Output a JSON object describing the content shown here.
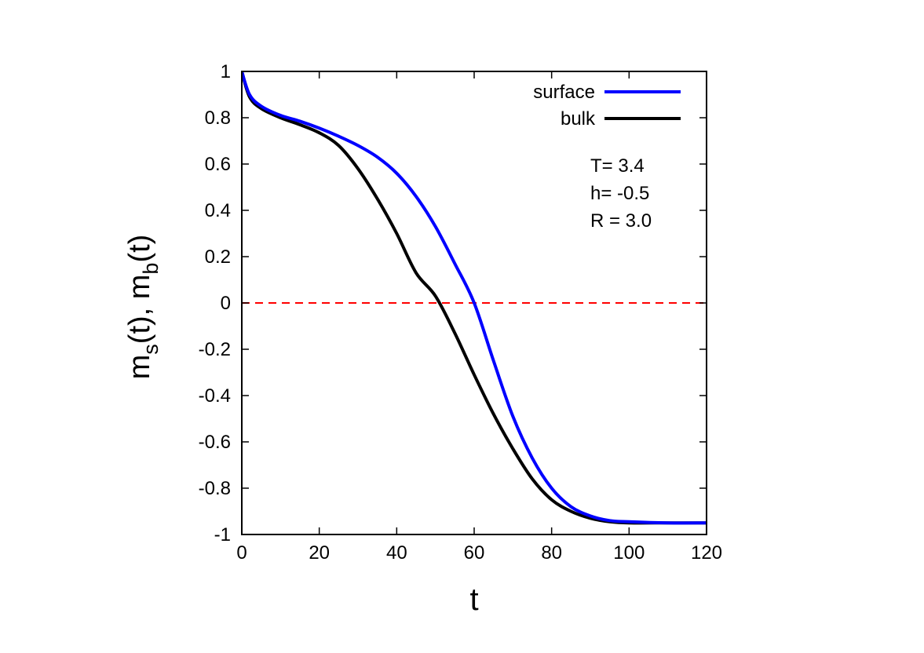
{
  "chart_data": {
    "type": "line",
    "xlabel": "t",
    "ylabel": {
      "parts": [
        {
          "text": "m",
          "sub": false
        },
        {
          "text": "s",
          "sub": true
        },
        {
          "text": "(t), m",
          "sub": false
        },
        {
          "text": "b",
          "sub": true
        },
        {
          "text": "(t)",
          "sub": false
        }
      ]
    },
    "xlim": [
      0,
      120
    ],
    "ylim": [
      -1,
      1
    ],
    "xticks": [
      0,
      20,
      40,
      60,
      80,
      100,
      120
    ],
    "xtick_labels": [
      "0",
      "20",
      "40",
      "60",
      "80",
      "100",
      "120"
    ],
    "yticks": [
      -1,
      -0.8,
      -0.6,
      -0.4,
      -0.2,
      0,
      0.2,
      0.4,
      0.6,
      0.8,
      1
    ],
    "ytick_labels": [
      "-1",
      "-0.8",
      "-0.6",
      "-0.4",
      "-0.2",
      "0",
      "0.2",
      "0.4",
      "0.6",
      "0.8",
      "1"
    ],
    "grid": false,
    "legend_position": "top-right",
    "series": [
      {
        "name": "surface",
        "color": "#0000ff",
        "x": [
          0,
          2,
          5,
          10,
          15,
          20,
          25,
          30,
          35,
          40,
          45,
          50,
          55,
          60,
          65,
          70,
          75,
          80,
          85,
          90,
          95,
          100,
          110,
          120
        ],
        "y": [
          1.0,
          0.9,
          0.85,
          0.81,
          0.785,
          0.755,
          0.72,
          0.68,
          0.63,
          0.56,
          0.46,
          0.33,
          0.17,
          0.0,
          -0.25,
          -0.49,
          -0.67,
          -0.8,
          -0.88,
          -0.92,
          -0.94,
          -0.945,
          -0.95,
          -0.95
        ]
      },
      {
        "name": "bulk",
        "color": "#000000",
        "x": [
          0,
          2,
          5,
          10,
          15,
          20,
          25,
          30,
          35,
          40,
          45,
          50,
          55,
          60,
          65,
          70,
          75,
          80,
          85,
          90,
          95,
          100,
          110,
          120
        ],
        "y": [
          1.0,
          0.89,
          0.84,
          0.8,
          0.77,
          0.735,
          0.68,
          0.58,
          0.45,
          0.3,
          0.13,
          0.03,
          -0.13,
          -0.31,
          -0.48,
          -0.63,
          -0.76,
          -0.85,
          -0.9,
          -0.93,
          -0.945,
          -0.95,
          -0.95,
          -0.95
        ]
      }
    ],
    "reference_line": {
      "y": 0,
      "color": "#ff0000",
      "style": "dashed"
    },
    "annotations": [
      "T= 3.4",
      "h= -0.5",
      "R = 3.0"
    ]
  }
}
